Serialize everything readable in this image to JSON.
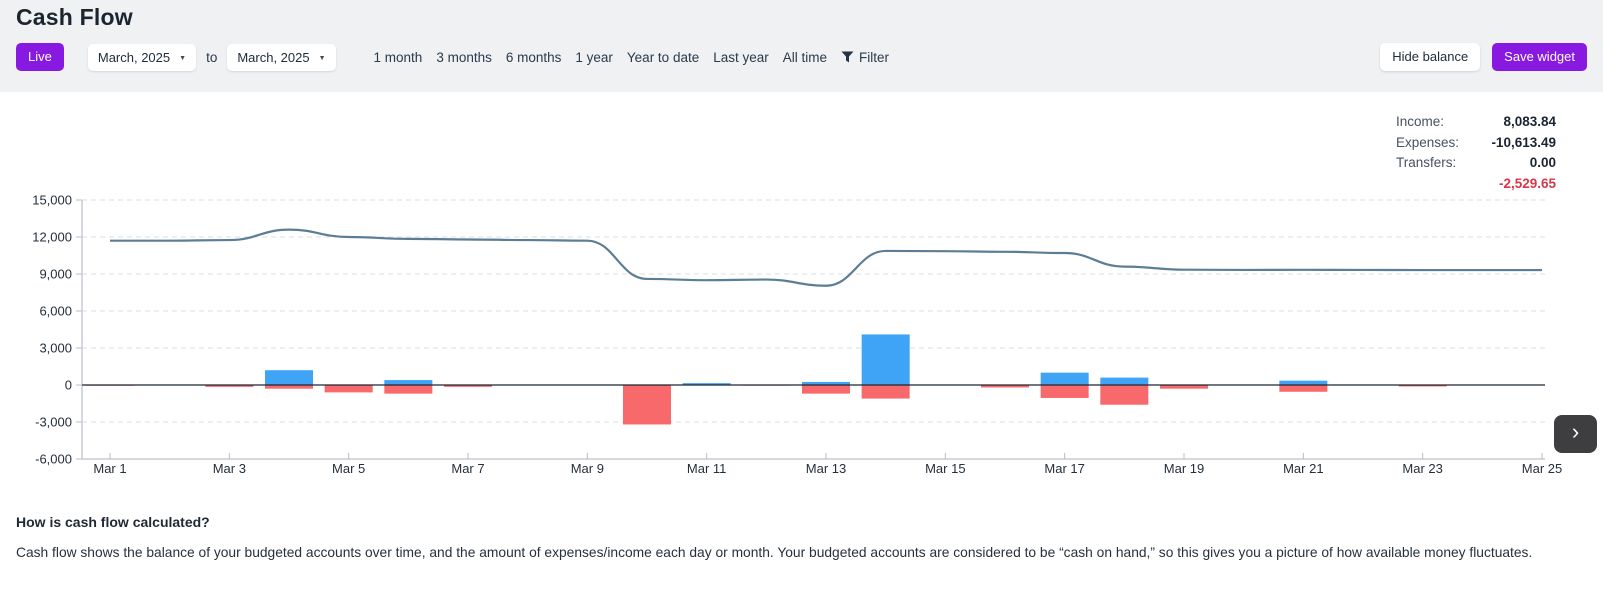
{
  "page": {
    "title": "Cash Flow"
  },
  "toolbar": {
    "live_label": "Live",
    "from_month": "March, 2025",
    "to_word": "to",
    "to_month": "March, 2025",
    "ranges": [
      "1 month",
      "3 months",
      "6 months",
      "1 year",
      "Year to date",
      "Last year",
      "All time"
    ],
    "filter_label": "Filter",
    "hide_balance_label": "Hide balance",
    "save_widget_label": "Save widget"
  },
  "summary": {
    "rows": [
      {
        "label": "Income:",
        "value": "8,083.84",
        "negative": false
      },
      {
        "label": "Expenses:",
        "value": "-10,613.49",
        "negative": false
      },
      {
        "label": "Transfers:",
        "value": "0.00",
        "negative": false
      },
      {
        "label": "",
        "value": "-2,529.65",
        "negative": true
      }
    ]
  },
  "chart_data": {
    "type": "combo",
    "subtypes": [
      "line",
      "bar"
    ],
    "title": "Cash Flow",
    "xlabel": "",
    "ylabel": "",
    "ylim": [
      -6000,
      15000
    ],
    "grid": "dashed horizontal gridlines, solid dark zero line",
    "legend_position": "top-right (Income / Expenses / Transfers totals)",
    "days": [
      1,
      2,
      3,
      4,
      5,
      6,
      7,
      8,
      9,
      10,
      11,
      12,
      13,
      14,
      15,
      16,
      17,
      18,
      19,
      20,
      21,
      22,
      23,
      24,
      25
    ],
    "x_tick_days": [
      1,
      3,
      5,
      7,
      9,
      11,
      13,
      15,
      17,
      19,
      21,
      23,
      25
    ],
    "x_tick_labels": [
      "Mar 1",
      "Mar 3",
      "Mar 5",
      "Mar 7",
      "Mar 9",
      "Mar 11",
      "Mar 13",
      "Mar 15",
      "Mar 17",
      "Mar 19",
      "Mar 21",
      "Mar 23",
      "Mar 25"
    ],
    "y_ticks": [
      15000,
      12000,
      9000,
      6000,
      3000,
      0,
      -3000,
      -6000
    ],
    "y_tick_labels": [
      "15,000",
      "12,000",
      "9,000",
      "6,000",
      "3,000",
      "0",
      "-3,000",
      "-6,000"
    ],
    "series": {
      "balance": {
        "name": "Balance",
        "kind": "line",
        "color": "#5C7D96",
        "values": [
          11700,
          11700,
          11750,
          12600,
          12000,
          11850,
          11800,
          11750,
          11700,
          8600,
          8500,
          8550,
          8050,
          10870,
          10850,
          10800,
          10700,
          9600,
          9350,
          9330,
          9340,
          9330,
          9320,
          9320,
          9320
        ]
      },
      "income": {
        "name": "Income",
        "kind": "bar",
        "color": "#3FA3F6",
        "values": [
          0,
          0,
          0,
          1200,
          0,
          400,
          0,
          0,
          0,
          0,
          150,
          0,
          250,
          4100,
          0,
          0,
          1000,
          600,
          0,
          0,
          350,
          0,
          0,
          0,
          0
        ]
      },
      "expenses": {
        "name": "Expenses",
        "kind": "bar",
        "color": "#F8696B",
        "values": [
          -60,
          0,
          -150,
          -300,
          -600,
          -700,
          -150,
          0,
          0,
          -3200,
          0,
          -50,
          -700,
          -1100,
          0,
          -200,
          -1050,
          -1600,
          -300,
          -40,
          -550,
          0,
          -120,
          0,
          0
        ]
      }
    }
  },
  "footer": {
    "heading": "How is cash flow calculated?",
    "body": "Cash flow shows the balance of your budgeted accounts over time, and the amount of expenses/income each day or month. Your budgeted accounts are considered to be “cash on hand,” so this gives you a picture of how available money fluctuates."
  },
  "colors": {
    "accent_purple": "#8719E0",
    "income_blue": "#3FA3F6",
    "expense_red": "#F8696B",
    "balance_line": "#5C7D96",
    "negative_red": "#D6384A",
    "header_background": "#eff1f3"
  }
}
